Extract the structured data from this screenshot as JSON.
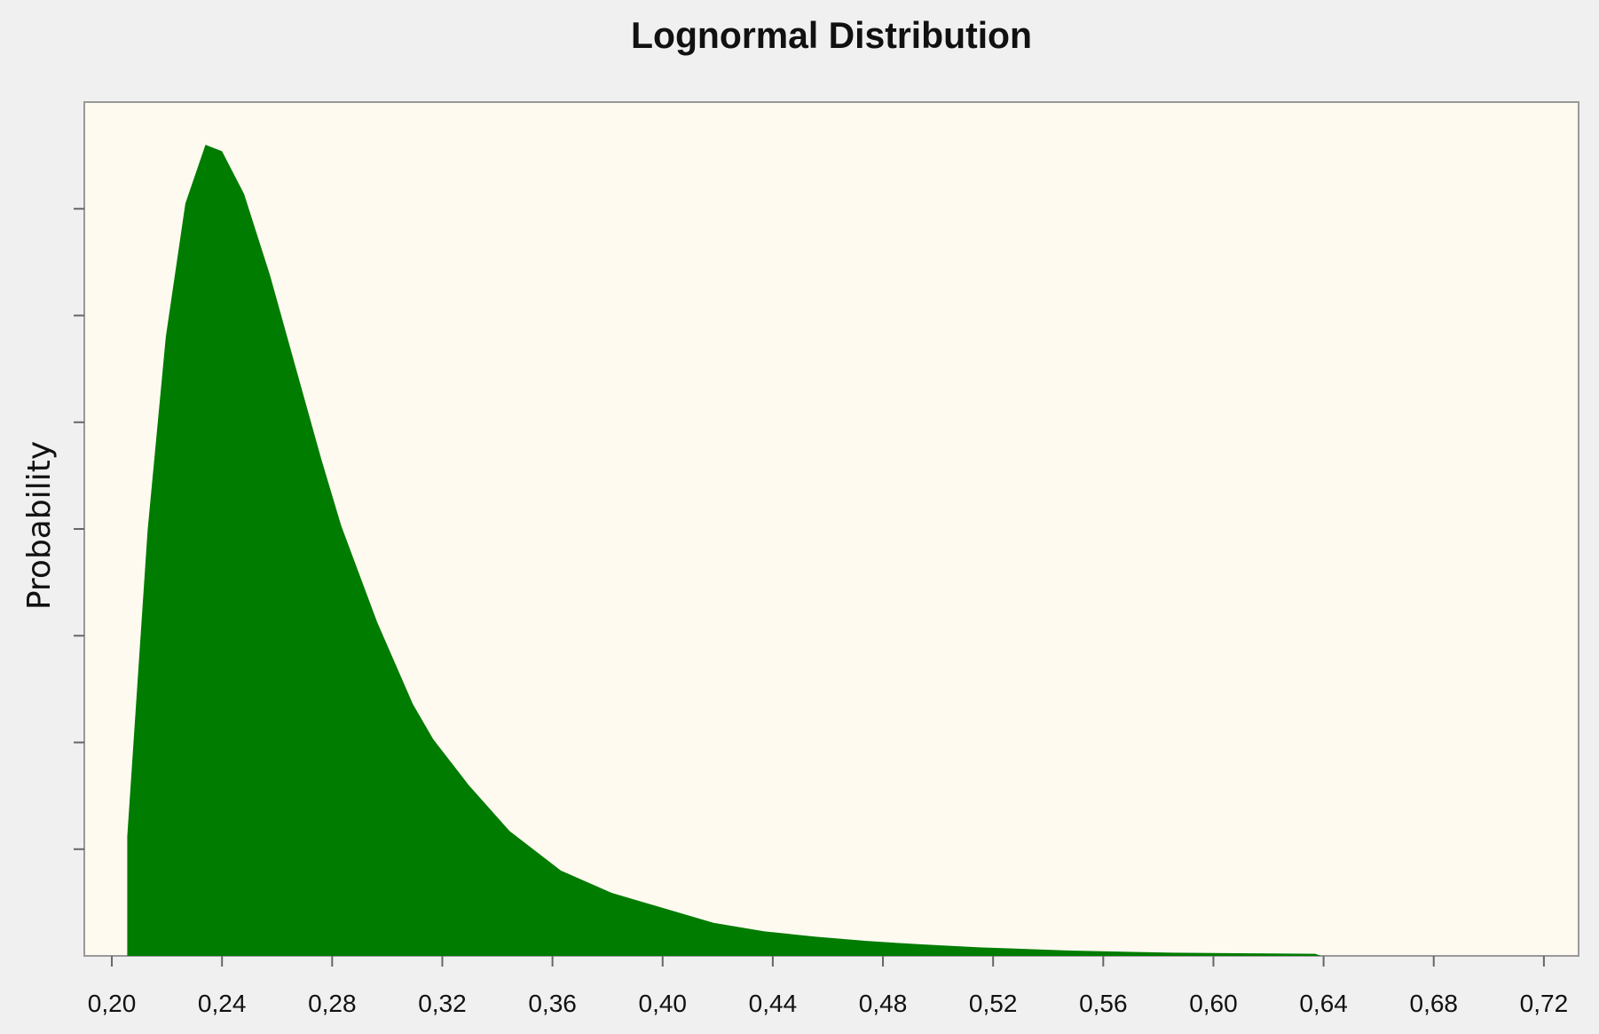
{
  "chart_data": {
    "type": "area",
    "title": "Lognormal Distribution",
    "ylabel": "Probability",
    "x": [
      0.2056,
      0.2056,
      0.213,
      0.2196,
      0.2267,
      0.234,
      0.24,
      0.248,
      0.2574,
      0.2667,
      0.276,
      0.2833,
      0.2963,
      0.3093,
      0.3167,
      0.3296,
      0.3444,
      0.363,
      0.3815,
      0.4,
      0.4185,
      0.437,
      0.4556,
      0.474,
      0.4926,
      0.515,
      0.548,
      0.585,
      0.637,
      0.639
    ],
    "series": [
      {
        "name": "Lognormal",
        "color": "#007c00",
        "values": [
          0,
          1.12,
          3.99,
          5.8,
          7.05,
          7.6,
          7.54,
          7.14,
          6.38,
          5.52,
          4.66,
          4.03,
          3.13,
          2.36,
          2.03,
          1.6,
          1.17,
          0.8,
          0.59,
          0.45,
          0.31,
          0.23,
          0.18,
          0.14,
          0.11,
          0.08,
          0.05,
          0.03,
          0.02,
          0
        ]
      }
    ],
    "xlim": [
      0.19,
      0.7326
    ],
    "xticks": [
      {
        "value": 0.2,
        "label": "0,20"
      },
      {
        "value": 0.24,
        "label": "0,24"
      },
      {
        "value": 0.28,
        "label": "0,28"
      },
      {
        "value": 0.32,
        "label": "0,32"
      },
      {
        "value": 0.36,
        "label": "0,36"
      },
      {
        "value": 0.4,
        "label": "0,40"
      },
      {
        "value": 0.44,
        "label": "0,44"
      },
      {
        "value": 0.48,
        "label": "0,48"
      },
      {
        "value": 0.52,
        "label": "0,52"
      },
      {
        "value": 0.56,
        "label": "0,56"
      },
      {
        "value": 0.6,
        "label": "0,60"
      },
      {
        "value": 0.64,
        "label": "0,64"
      },
      {
        "value": 0.68,
        "label": "0,68"
      },
      {
        "value": 0.72,
        "label": "0,72"
      }
    ],
    "ylim": [
      0,
      8
    ],
    "yticks": [
      1,
      2,
      3,
      4,
      5,
      6,
      7
    ]
  }
}
